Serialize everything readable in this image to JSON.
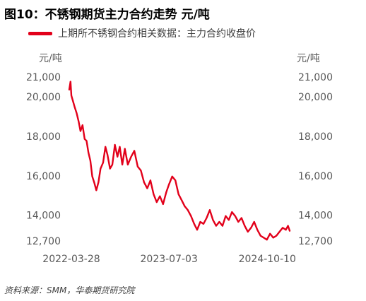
{
  "title": "图10：不锈钢期货主力合约走势  元/吨",
  "source": "资料来源：SMM，华泰期货研究院",
  "colors": {
    "series": "#e2001a",
    "text": "#595959"
  },
  "chart_data": {
    "type": "line",
    "unit_left": "元/吨",
    "unit_right": "元/吨",
    "ylim": [
      12700,
      21000
    ],
    "y_ticks": [
      12700,
      14000,
      16000,
      18000,
      20000,
      21000
    ],
    "y_tick_labels": [
      "12,700",
      "14,000",
      "16,000",
      "18,000",
      "20,000",
      "21,000"
    ],
    "x_ticks": [
      "2022-03-28",
      "2023-07-03",
      "2024-10-10"
    ],
    "grid": false,
    "legend": "top-left",
    "series": [
      {
        "name": "上期所不锈钢合约相关数据：主力合约收盘价",
        "color": "#e2001a",
        "points": [
          [
            "2022-03-18",
            20400
          ],
          [
            "2022-03-24",
            20800
          ],
          [
            "2022-03-28",
            20100
          ],
          [
            "2022-04-05",
            19800
          ],
          [
            "2022-04-13",
            19500
          ],
          [
            "2022-04-22",
            19200
          ],
          [
            "2022-05-01",
            18800
          ],
          [
            "2022-05-10",
            18300
          ],
          [
            "2022-05-20",
            18600
          ],
          [
            "2022-05-30",
            17900
          ],
          [
            "2022-06-08",
            17800
          ],
          [
            "2022-06-17",
            17200
          ],
          [
            "2022-06-26",
            16800
          ],
          [
            "2022-07-05",
            16000
          ],
          [
            "2022-07-14",
            15700
          ],
          [
            "2022-07-24",
            15300
          ],
          [
            "2022-08-03",
            15700
          ],
          [
            "2022-08-13",
            16400
          ],
          [
            "2022-08-25",
            16700
          ],
          [
            "2022-09-05",
            17500
          ],
          [
            "2022-09-15",
            17100
          ],
          [
            "2022-09-27",
            16400
          ],
          [
            "2022-10-08",
            16600
          ],
          [
            "2022-10-20",
            17600
          ],
          [
            "2022-11-01",
            17000
          ],
          [
            "2022-11-12",
            17500
          ],
          [
            "2022-11-24",
            16600
          ],
          [
            "2022-12-06",
            17400
          ],
          [
            "2022-12-20",
            16600
          ],
          [
            "2023-01-05",
            17000
          ],
          [
            "2023-01-20",
            17300
          ],
          [
            "2023-02-05",
            16500
          ],
          [
            "2023-02-20",
            16300
          ],
          [
            "2023-03-07",
            15700
          ],
          [
            "2023-03-22",
            15400
          ],
          [
            "2023-04-06",
            15800
          ],
          [
            "2023-04-21",
            15100
          ],
          [
            "2023-05-06",
            14700
          ],
          [
            "2023-05-21",
            15000
          ],
          [
            "2023-06-05",
            14600
          ],
          [
            "2023-06-20",
            15200
          ],
          [
            "2023-07-03",
            15600
          ],
          [
            "2023-07-18",
            16000
          ],
          [
            "2023-08-02",
            15800
          ],
          [
            "2023-08-17",
            15100
          ],
          [
            "2023-09-01",
            14800
          ],
          [
            "2023-09-15",
            14500
          ],
          [
            "2023-09-30",
            14300
          ],
          [
            "2023-10-15",
            14000
          ],
          [
            "2023-10-30",
            13600
          ],
          [
            "2023-11-13",
            13300
          ],
          [
            "2023-11-28",
            13700
          ],
          [
            "2023-12-13",
            13600
          ],
          [
            "2023-12-28",
            13900
          ],
          [
            "2024-01-12",
            14300
          ],
          [
            "2024-01-27",
            13800
          ],
          [
            "2024-02-11",
            13500
          ],
          [
            "2024-02-26",
            13700
          ],
          [
            "2024-03-12",
            13500
          ],
          [
            "2024-03-27",
            14000
          ],
          [
            "2024-04-11",
            13800
          ],
          [
            "2024-04-26",
            14200
          ],
          [
            "2024-05-11",
            14000
          ],
          [
            "2024-05-26",
            13700
          ],
          [
            "2024-06-10",
            13900
          ],
          [
            "2024-06-25",
            13500
          ],
          [
            "2024-07-10",
            13200
          ],
          [
            "2024-07-25",
            13400
          ],
          [
            "2024-08-09",
            13700
          ],
          [
            "2024-08-24",
            13300
          ],
          [
            "2024-09-08",
            13000
          ],
          [
            "2024-09-23",
            12900
          ],
          [
            "2024-10-08",
            12800
          ],
          [
            "2024-10-23",
            13100
          ],
          [
            "2024-11-07",
            12900
          ],
          [
            "2024-11-22",
            13000
          ],
          [
            "2024-12-07",
            13200
          ],
          [
            "2024-12-22",
            13400
          ],
          [
            "2025-01-06",
            13300
          ],
          [
            "2025-01-16",
            13500
          ],
          [
            "2025-01-24",
            13250
          ]
        ]
      }
    ]
  }
}
